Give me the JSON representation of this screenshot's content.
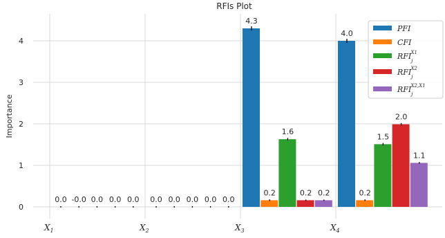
{
  "chart_data": {
    "type": "bar",
    "title": "RFIs Plot",
    "xlabel": "",
    "ylabel": "Importance",
    "ylim": [
      -0.3,
      4.6
    ],
    "yticks": [
      0,
      1,
      2,
      3,
      4
    ],
    "grid": true,
    "legend_position": "top-right",
    "categories": [
      "X1",
      "X2",
      "X3",
      "X4"
    ],
    "category_labels": [
      {
        "base": "X",
        "sub": "1"
      },
      {
        "base": "X",
        "sub": "2"
      },
      {
        "base": "X",
        "sub": "3"
      },
      {
        "base": "X",
        "sub": "4"
      }
    ],
    "series": [
      {
        "name": "PFI",
        "legend": {
          "base": "PFI",
          "sub": "",
          "sup": ""
        },
        "color": "#1f77b4",
        "values": [
          0.0,
          0.0,
          4.3,
          4.0
        ],
        "labels": [
          "0.0",
          "0.0",
          "4.3",
          "4.0"
        ],
        "errors": [
          0,
          0,
          0.05,
          0.05
        ]
      },
      {
        "name": "CFI",
        "legend": {
          "base": "CFI",
          "sub": "",
          "sup": ""
        },
        "color": "#ff7f0e",
        "values": [
          -0.0,
          0.0,
          0.16,
          0.16
        ],
        "labels": [
          "-0.0",
          "0.0",
          "0.2",
          "0.2"
        ],
        "errors": [
          0,
          0,
          0.02,
          0.02
        ]
      },
      {
        "name": "RFI_j^{X_1}",
        "legend": {
          "base": "RFI",
          "sub": "j",
          "sup": "X1"
        },
        "color": "#2ca02c",
        "values": [
          0.0,
          0.0,
          1.63,
          1.51
        ],
        "labels": [
          "0.0",
          "0.0",
          "1.6",
          "1.5"
        ],
        "errors": [
          0.005,
          0.005,
          0.03,
          0.03
        ]
      },
      {
        "name": "RFI_j^{X_2}",
        "legend": {
          "base": "RFI",
          "sub": "j",
          "sup": "X2"
        },
        "color": "#d62728",
        "values": [
          0.0,
          0.0,
          0.16,
          1.99
        ],
        "labels": [
          "0.0",
          "0.0",
          "0.2",
          "2.0"
        ],
        "errors": [
          0.005,
          0.005,
          0.01,
          0.03
        ]
      },
      {
        "name": "RFI_j^{X_2,X_1}",
        "legend": {
          "base": "RFI",
          "sub": "j",
          "sup": "X2,X1"
        },
        "color": "#9467bd",
        "values": [
          0.0,
          0.0,
          0.16,
          1.06
        ],
        "labels": [
          "0.0",
          "0.0",
          "0.2",
          "1.1"
        ],
        "errors": [
          0.005,
          0.005,
          0.01,
          0.02
        ]
      }
    ]
  }
}
